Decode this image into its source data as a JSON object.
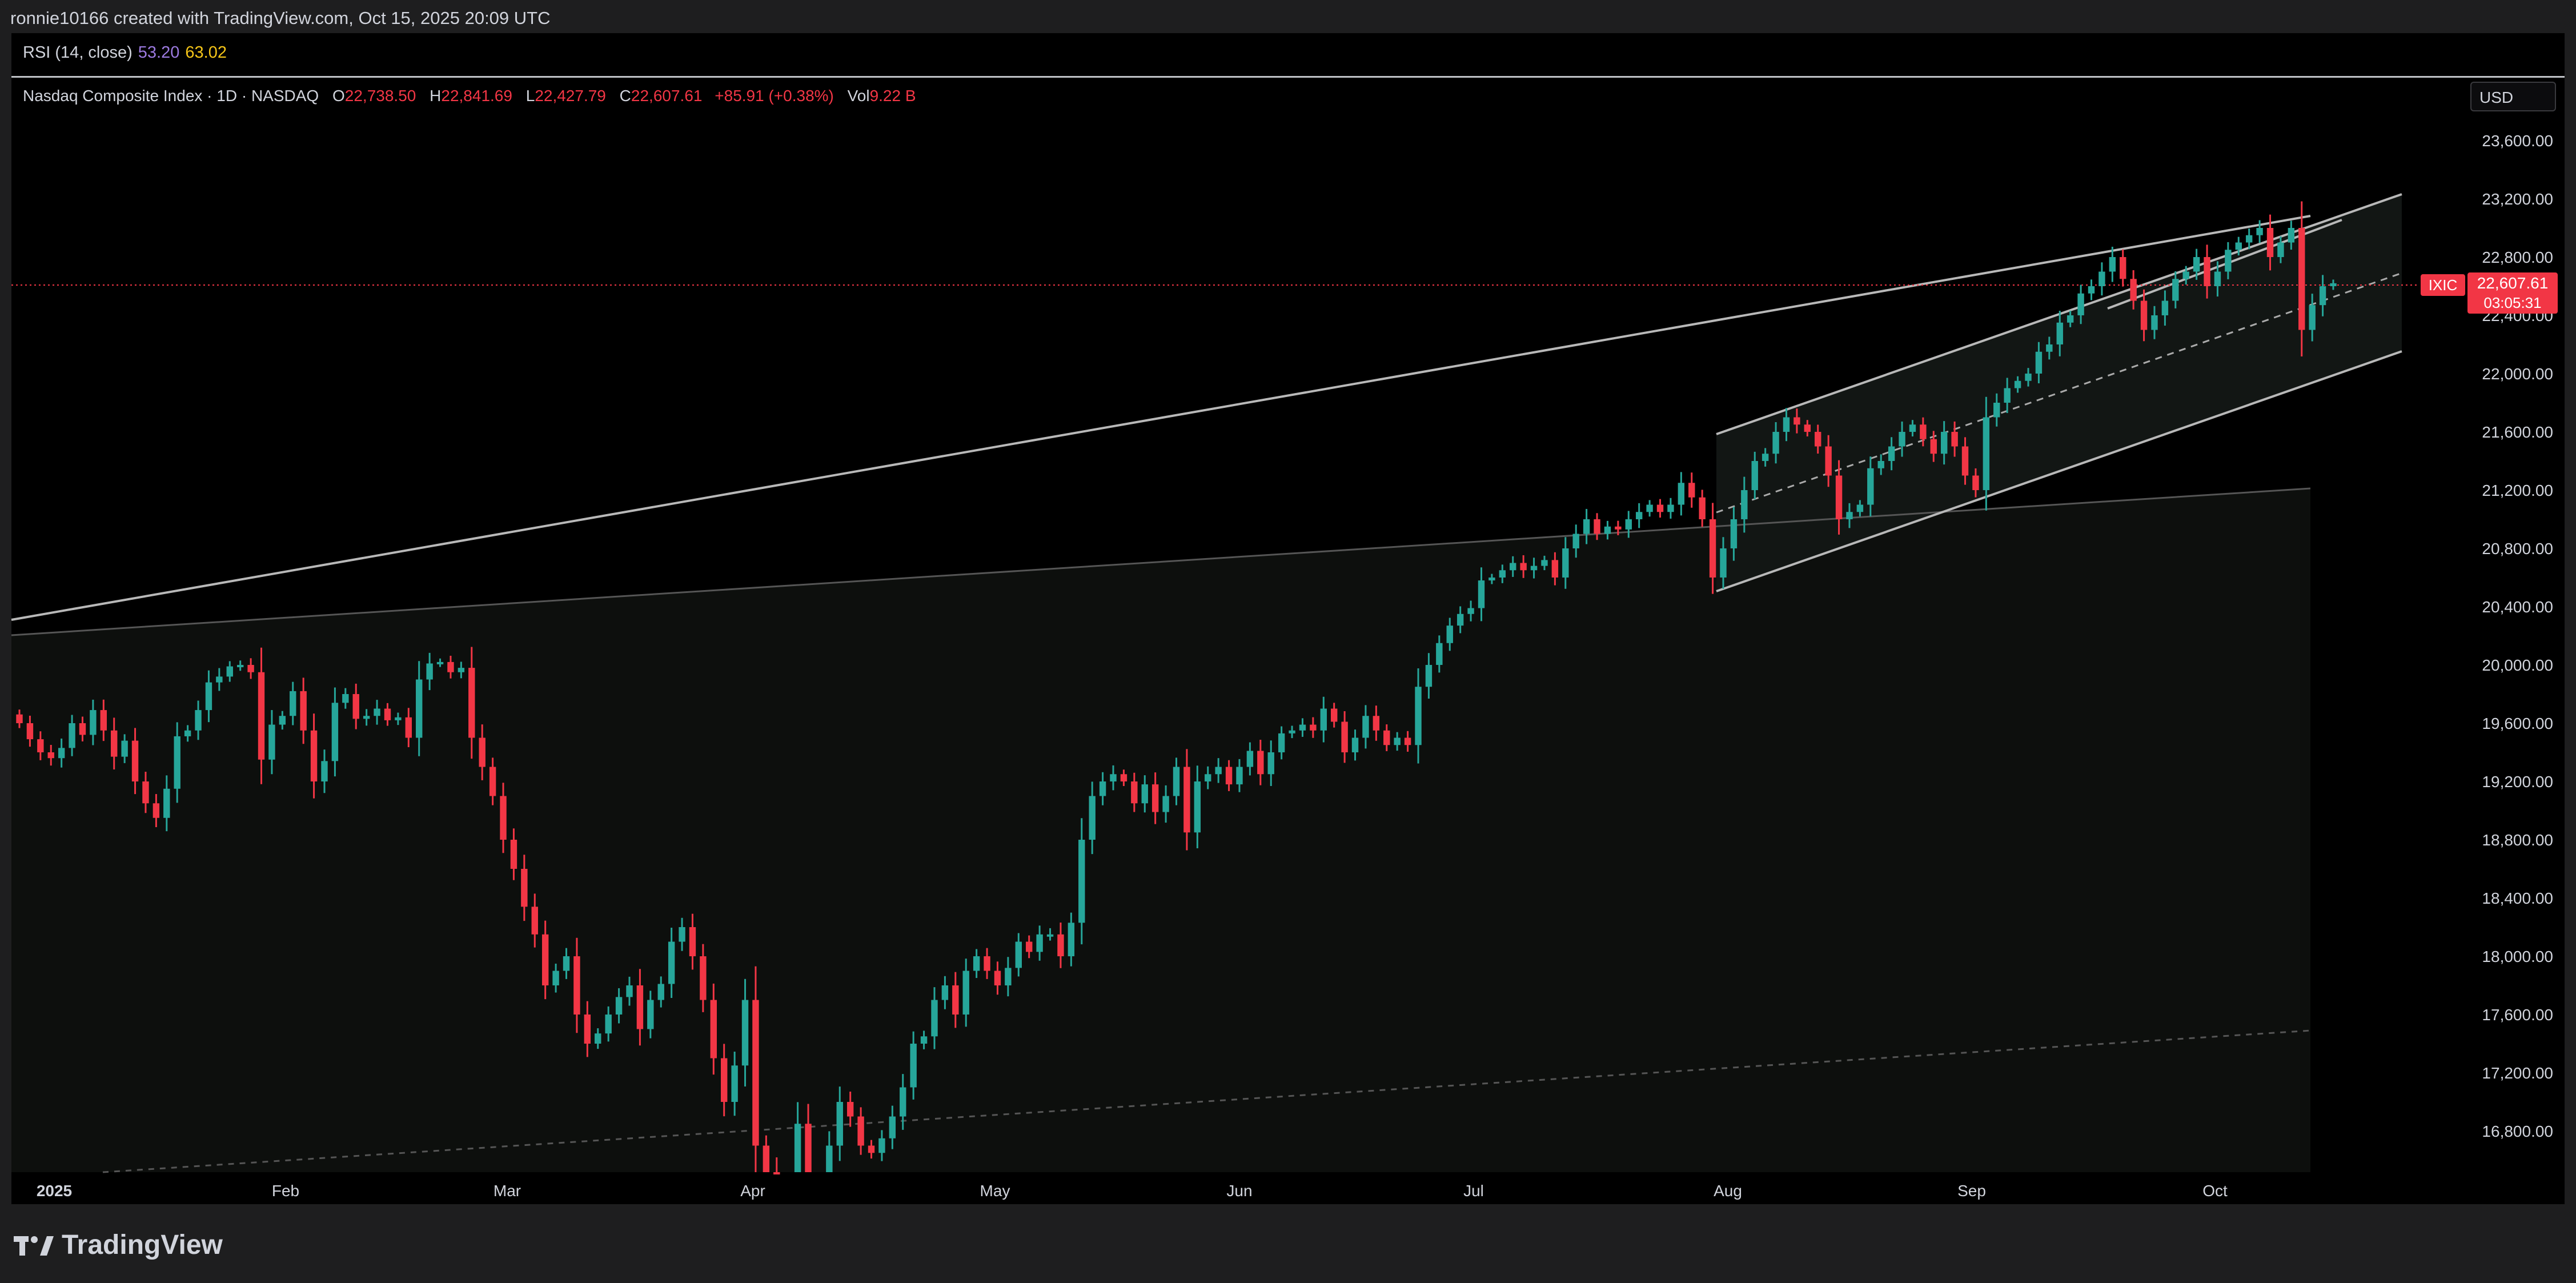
{
  "header": {
    "attribution": "ronnie10166 created with TradingView.com, Oct 15, 2025 20:09 UTC"
  },
  "rsi": {
    "label": "RSI (14, close)",
    "value1": "53.20",
    "value2": "63.02"
  },
  "legend": {
    "title": "Nasdaq Composite Index · 1D · NASDAQ",
    "o_label": "O",
    "o": "22,738.50",
    "h_label": "H",
    "h": "22,841.69",
    "l_label": "L",
    "l": "22,427.79",
    "c_label": "C",
    "c": "22,607.61",
    "change": "+85.91 (+0.38%)",
    "vol_label": "Vol",
    "vol": "9.22 B"
  },
  "currency": "USD",
  "price_tag": {
    "symbol": "IXIC",
    "price": "22,607.61",
    "countdown": "03:05:31"
  },
  "brand": {
    "name": "TradingView"
  },
  "colors": {
    "up": "#26a69a",
    "down": "#f23645",
    "background": "#000000",
    "grid_text": "#d1d4dc"
  },
  "chart_data": {
    "type": "candlestick",
    "title": "Nasdaq Composite Index · 1D · NASDAQ",
    "x_ticks": [
      "2025",
      "Feb",
      "Mar",
      "Apr",
      "May",
      "Jun",
      "Jul",
      "Aug",
      "Sep",
      "Oct"
    ],
    "y_ticks": [
      "23,600.00",
      "23,200.00",
      "22,800.00",
      "22,400.00",
      "22,000.00",
      "21,600.00",
      "21,200.00",
      "20,800.00",
      "20,400.00",
      "20,000.00",
      "19,600.00",
      "19,200.00",
      "18,800.00",
      "18,400.00",
      "18,000.00",
      "17,600.00",
      "17,200.00",
      "16,800.00"
    ],
    "ylim": [
      16500,
      23800
    ],
    "last_price": 22607.61,
    "closes": [
      19600,
      19490,
      19400,
      19360,
      19430,
      19600,
      19520,
      19690,
      19550,
      19370,
      19480,
      19200,
      19050,
      18950,
      19150,
      19510,
      19550,
      19690,
      19880,
      19920,
      19990,
      20000,
      19950,
      19350,
      19590,
      19650,
      19820,
      19550,
      19200,
      19340,
      19740,
      19800,
      19630,
      19650,
      19700,
      19620,
      19640,
      19500,
      19900,
      20010,
      20020,
      19950,
      19980,
      19500,
      19300,
      19100,
      18800,
      18600,
      18340,
      18150,
      17800,
      17900,
      18000,
      17600,
      17400,
      17470,
      17600,
      17720,
      17800,
      17500,
      17700,
      17810,
      18100,
      18200,
      18000,
      17700,
      17300,
      17000,
      17250,
      17700,
      16700,
      16500,
      16100,
      16380,
      16850,
      16300,
      16400,
      16700,
      17000,
      16900,
      16700,
      16650,
      16750,
      16900,
      17100,
      17400,
      17450,
      17700,
      17800,
      17600,
      17900,
      18000,
      17900,
      17800,
      17920,
      18100,
      18030,
      18150,
      18150,
      18000,
      18230,
      18800,
      19100,
      19200,
      19250,
      19200,
      19050,
      19180,
      18990,
      19100,
      19300,
      18850,
      19200,
      19250,
      19300,
      19180,
      19300,
      19410,
      19250,
      19400,
      19530,
      19550,
      19590,
      19550,
      19700,
      19610,
      19400,
      19500,
      19650,
      19550,
      19450,
      19500,
      19450,
      19850,
      20000,
      20150,
      20270,
      20350,
      20390,
      20580,
      20600,
      20650,
      20700,
      20650,
      20680,
      20720,
      20600,
      20800,
      20900,
      21000,
      20900,
      20950,
      20930,
      21000,
      21050,
      21100,
      21050,
      21100,
      21250,
      21150,
      21000,
      20600,
      20800,
      21000,
      21200,
      21400,
      21450,
      21600,
      21700,
      21650,
      21600,
      21500,
      21300,
      21000,
      21050,
      21100,
      21350,
      21400,
      21500,
      21600,
      21650,
      21550,
      21450,
      21600,
      21500,
      21300,
      21200,
      21700,
      21800,
      21900,
      21950,
      22000,
      22150,
      22200,
      22350,
      22400,
      22550,
      22600,
      22700,
      22800,
      22650,
      22500,
      22300,
      22400,
      22500,
      22650,
      22700,
      22800,
      22600,
      22700,
      22850,
      22900,
      22950,
      23000,
      22800,
      22900,
      23000,
      22300,
      22470,
      22600,
      22620
    ]
  }
}
